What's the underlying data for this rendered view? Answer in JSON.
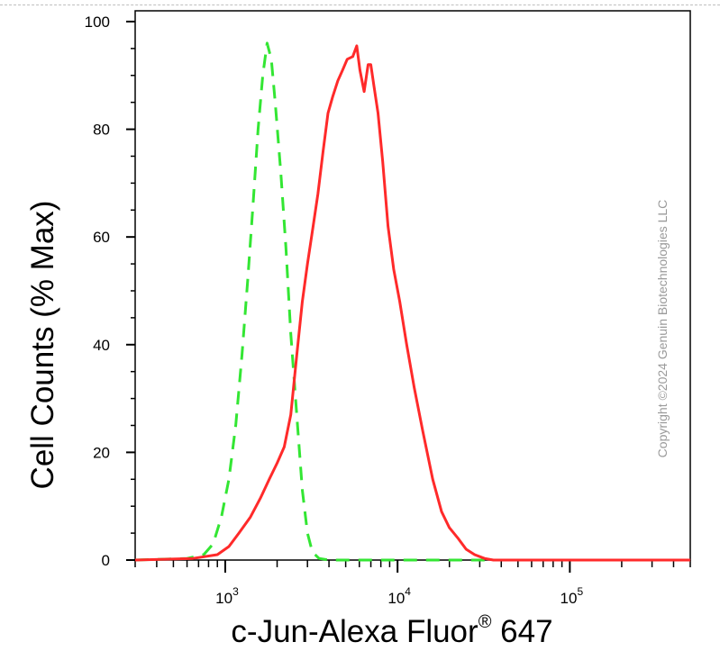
{
  "chart_data": {
    "type": "line",
    "title": "",
    "xlabel": "c-Jun-Alexa Fluor",
    "xlabel_superscript": "®",
    "xlabel_suffix": " 647",
    "ylabel": "Cell Counts (% Max)",
    "xscale": "log",
    "xlim": [
      300,
      500000
    ],
    "ylim": [
      0,
      102
    ],
    "yticks": [
      0,
      20,
      40,
      60,
      80,
      100
    ],
    "xticks": [
      {
        "value": 1000,
        "base": "10",
        "exp": "3"
      },
      {
        "value": 10000,
        "base": "10",
        "exp": "4"
      },
      {
        "value": 100000,
        "base": "10",
        "exp": "5"
      }
    ],
    "grid": false,
    "legend": "none",
    "watermark": "Copyright ©2024 Genuin Biotechnologies LLC",
    "series": [
      {
        "style": "dashed",
        "color": "#33e633",
        "points": [
          [
            300,
            0
          ],
          [
            600,
            0.3
          ],
          [
            750,
            1
          ],
          [
            850,
            3
          ],
          [
            950,
            8
          ],
          [
            1050,
            15
          ],
          [
            1150,
            25
          ],
          [
            1250,
            38
          ],
          [
            1350,
            52
          ],
          [
            1450,
            66
          ],
          [
            1550,
            80
          ],
          [
            1650,
            90
          ],
          [
            1750,
            96
          ],
          [
            1850,
            93
          ],
          [
            1950,
            85
          ],
          [
            2100,
            72
          ],
          [
            2250,
            58
          ],
          [
            2400,
            42
          ],
          [
            2600,
            27
          ],
          [
            2800,
            13
          ],
          [
            3000,
            5
          ],
          [
            3200,
            1.5
          ],
          [
            3500,
            0.3
          ],
          [
            4000,
            0
          ],
          [
            500000,
            0
          ]
        ]
      },
      {
        "style": "solid",
        "color": "#ff2a2a",
        "points": [
          [
            300,
            0
          ],
          [
            650,
            0.3
          ],
          [
            900,
            1
          ],
          [
            1050,
            2.5
          ],
          [
            1200,
            5
          ],
          [
            1400,
            8
          ],
          [
            1600,
            11.5
          ],
          [
            1800,
            15
          ],
          [
            2000,
            18
          ],
          [
            2200,
            21
          ],
          [
            2400,
            27
          ],
          [
            2600,
            38
          ],
          [
            2800,
            48
          ],
          [
            3000,
            55
          ],
          [
            3200,
            61
          ],
          [
            3450,
            68
          ],
          [
            3700,
            76
          ],
          [
            3950,
            83
          ],
          [
            4200,
            86
          ],
          [
            4500,
            89
          ],
          [
            4800,
            91
          ],
          [
            5100,
            93
          ],
          [
            5500,
            93.5
          ],
          [
            5800,
            95.5
          ],
          [
            6050,
            91
          ],
          [
            6400,
            87
          ],
          [
            6750,
            92
          ],
          [
            7000,
            92
          ],
          [
            7300,
            88
          ],
          [
            7700,
            83
          ],
          [
            8200,
            74
          ],
          [
            8800,
            62
          ],
          [
            9500,
            54
          ],
          [
            10300,
            48
          ],
          [
            11300,
            40
          ],
          [
            12500,
            32
          ],
          [
            14000,
            24
          ],
          [
            16000,
            15
          ],
          [
            18000,
            9
          ],
          [
            20000,
            6
          ],
          [
            22500,
            4
          ],
          [
            25000,
            2
          ],
          [
            28000,
            1
          ],
          [
            32000,
            0.3
          ],
          [
            36000,
            0
          ],
          [
            500000,
            0
          ]
        ]
      }
    ]
  }
}
